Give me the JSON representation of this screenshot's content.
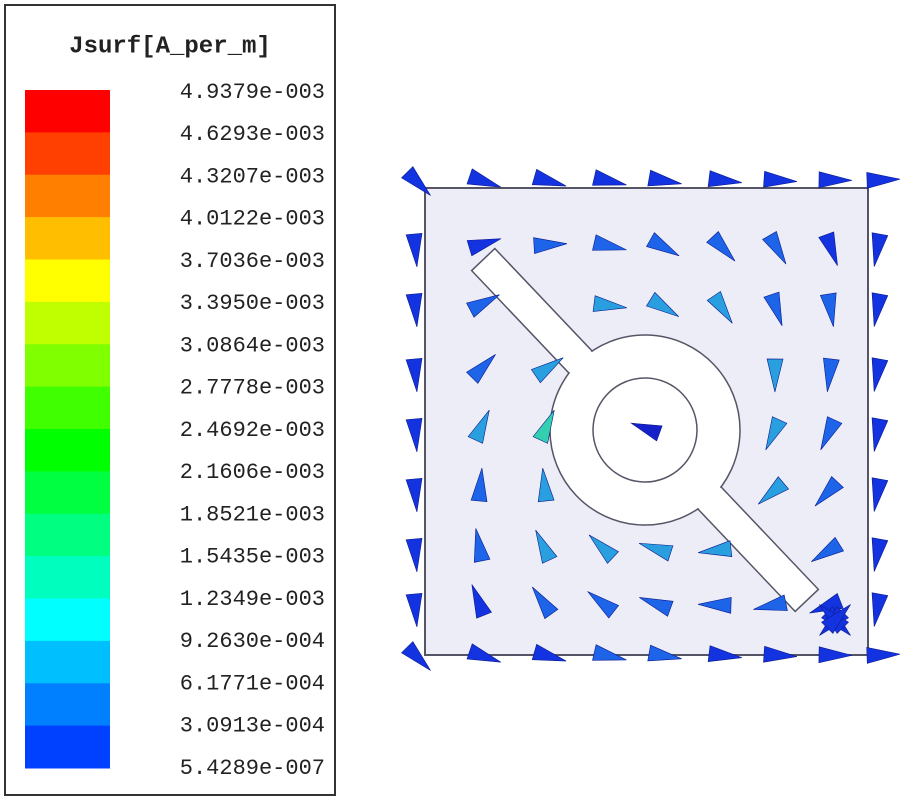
{
  "legend": {
    "title": "Jsurf[A_per_m]",
    "labels": [
      "4.9379e-003",
      "4.6293e-003",
      "4.3207e-003",
      "4.0122e-003",
      "3.7036e-003",
      "3.3950e-003",
      "3.0864e-003",
      "2.7778e-003",
      "2.4692e-003",
      "2.1606e-003",
      "1.8521e-003",
      "1.5435e-003",
      "1.2349e-003",
      "9.2630e-004",
      "6.1771e-004",
      "3.0913e-004",
      "5.4289e-007"
    ]
  }
}
